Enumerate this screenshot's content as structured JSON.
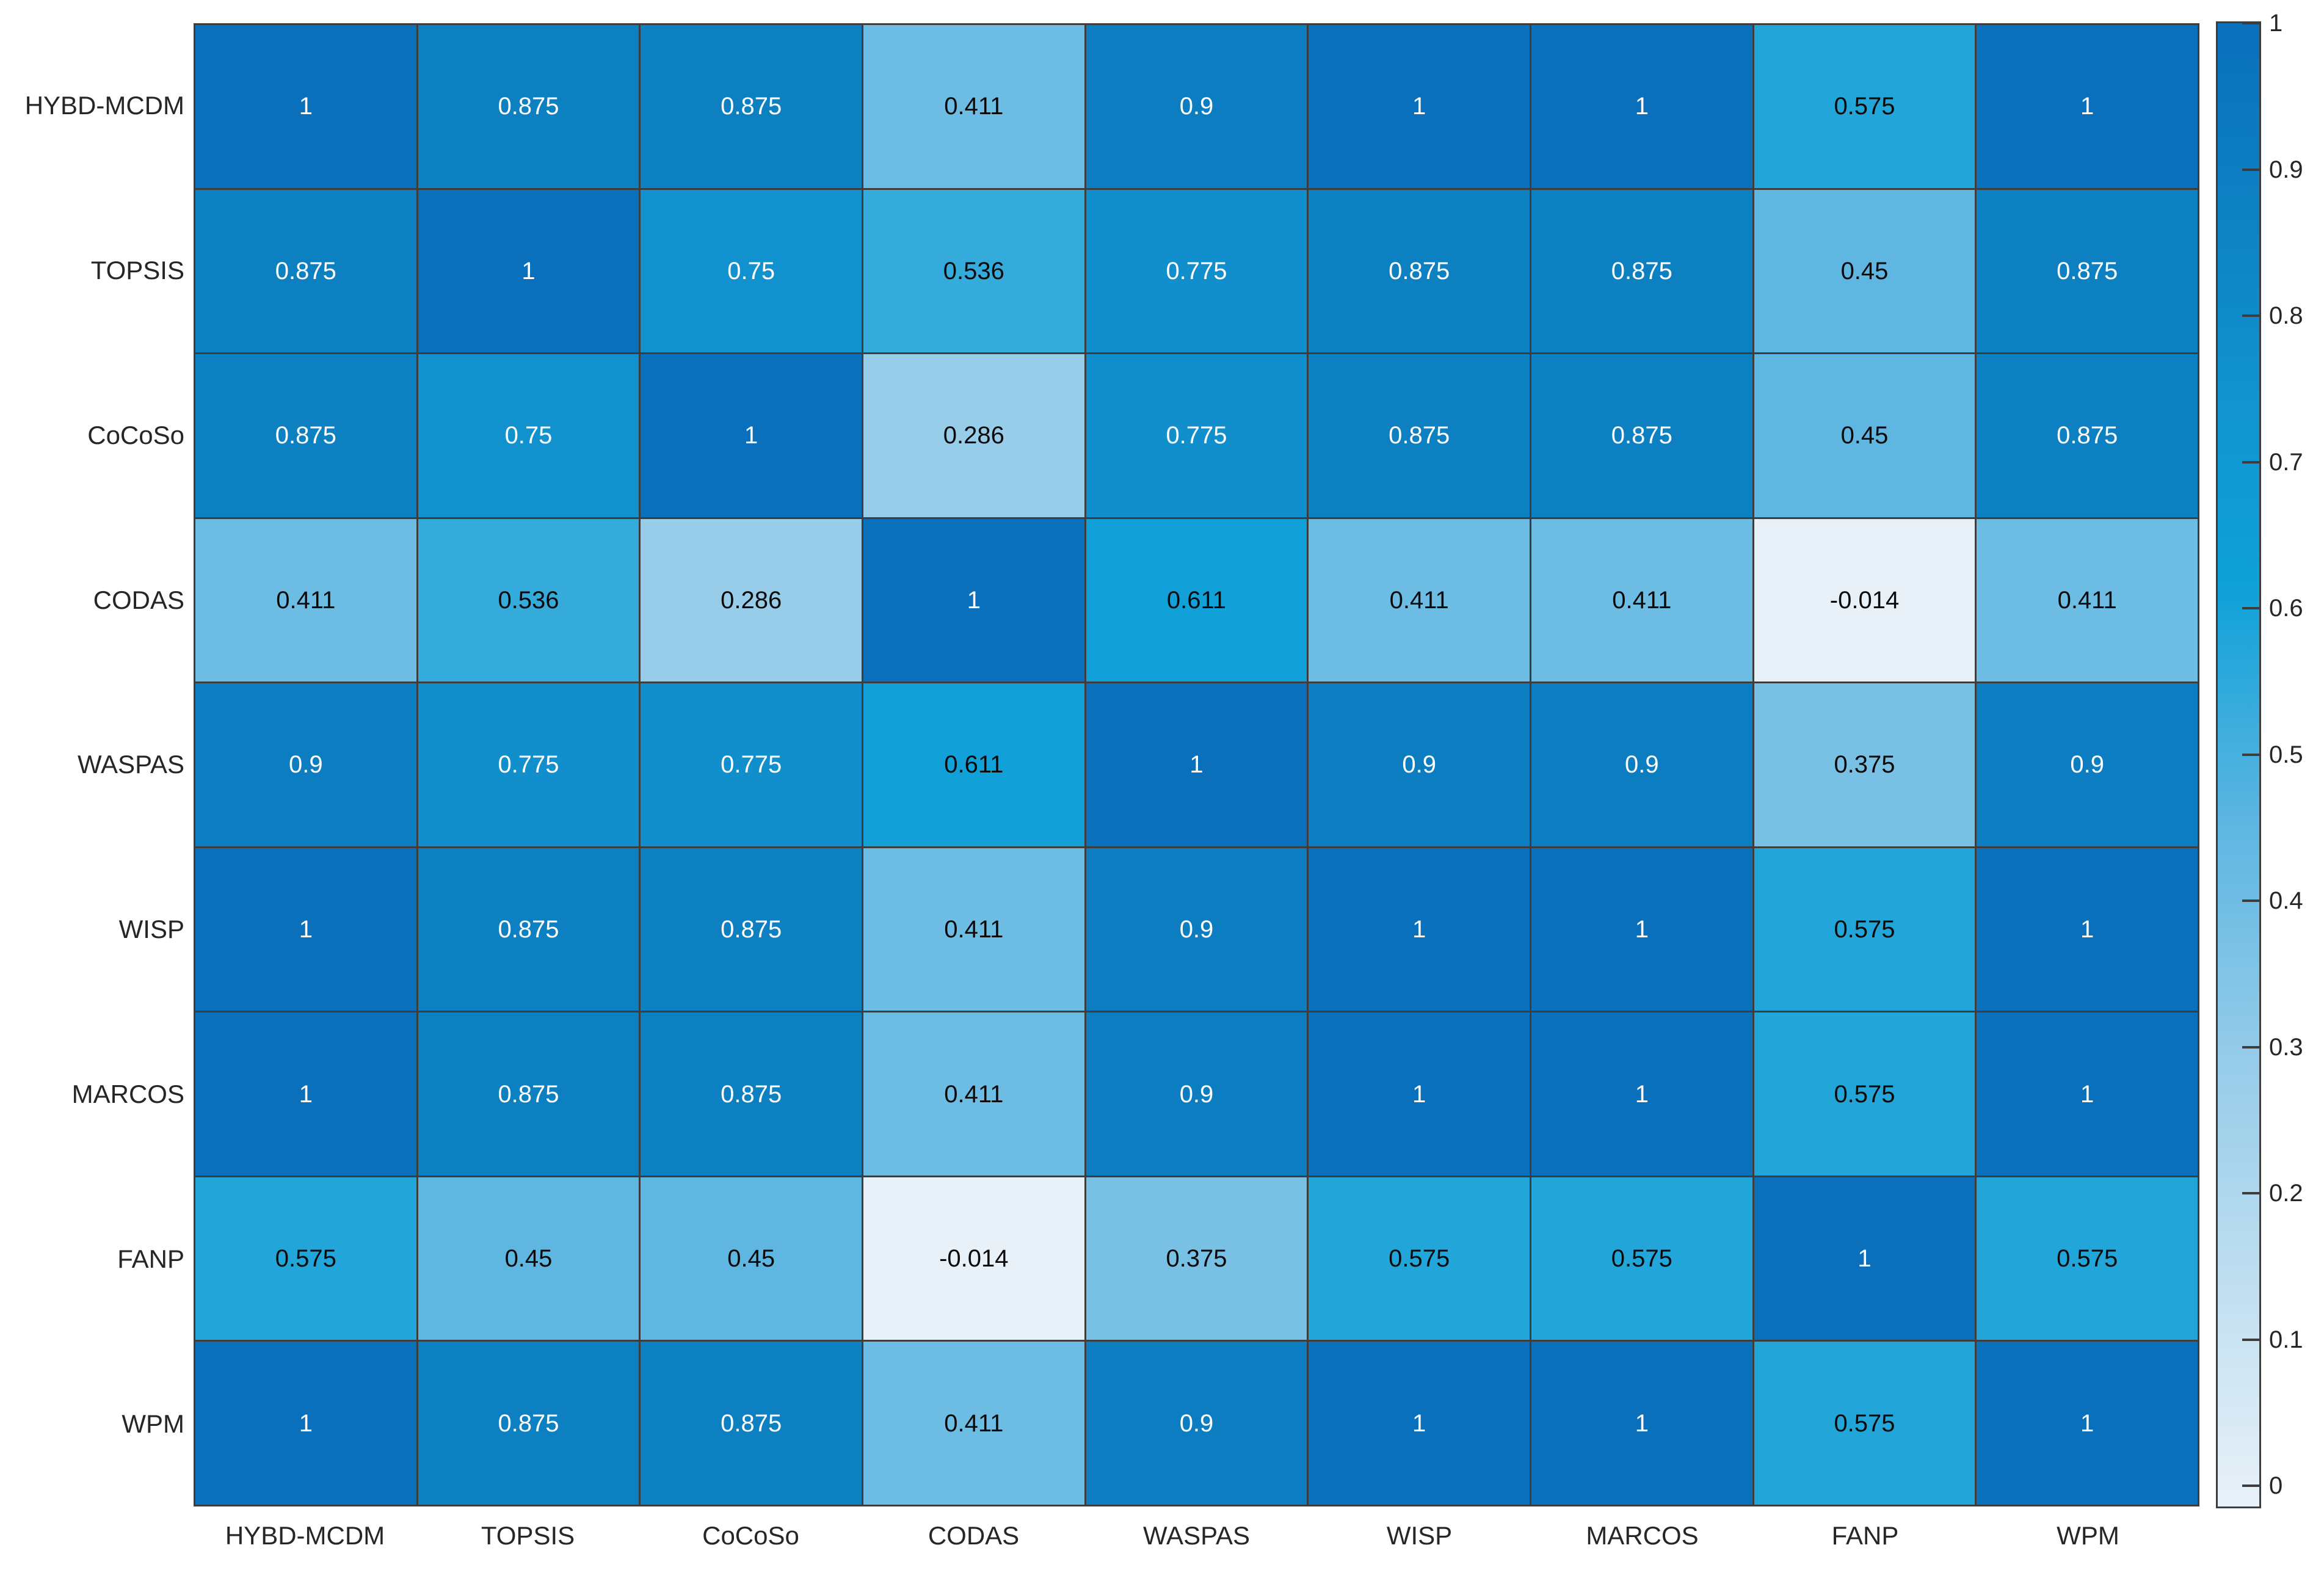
{
  "chart_data": {
    "type": "heatmap",
    "title": "",
    "categories": [
      "HYBD-MCDM",
      "TOPSIS",
      "CoCoSo",
      "CODAS",
      "WASPAS",
      "WISP",
      "MARCOS",
      "FANP",
      "WPM"
    ],
    "matrix": [
      [
        1,
        0.875,
        0.875,
        0.411,
        0.9,
        1,
        1,
        0.575,
        1
      ],
      [
        0.875,
        1,
        0.75,
        0.536,
        0.775,
        0.875,
        0.875,
        0.45,
        0.875
      ],
      [
        0.875,
        0.75,
        1,
        0.286,
        0.775,
        0.875,
        0.875,
        0.45,
        0.875
      ],
      [
        0.411,
        0.536,
        0.286,
        1,
        0.611,
        0.411,
        0.411,
        -0.014,
        0.411
      ],
      [
        0.9,
        0.775,
        0.775,
        0.611,
        1,
        0.9,
        0.9,
        0.375,
        0.9
      ],
      [
        1,
        0.875,
        0.875,
        0.411,
        0.9,
        1,
        1,
        0.575,
        1
      ],
      [
        1,
        0.875,
        0.875,
        0.411,
        0.9,
        1,
        1,
        0.575,
        1
      ],
      [
        0.575,
        0.45,
        0.45,
        -0.014,
        0.375,
        0.575,
        0.575,
        1,
        0.575
      ],
      [
        1,
        0.875,
        0.875,
        0.411,
        0.9,
        1,
        1,
        0.575,
        1
      ]
    ],
    "colorbar": {
      "position": "right",
      "vmin": -0.014,
      "vmax": 1,
      "tick_values": [
        0,
        0.1,
        0.2,
        0.3,
        0.4,
        0.5,
        0.6,
        0.7,
        0.8,
        0.9,
        1
      ],
      "tick_labels": [
        "0",
        "0.1",
        "0.2",
        "0.3",
        "0.4",
        "0.5",
        "0.6",
        "0.7",
        "0.8",
        "0.9",
        "1"
      ]
    },
    "colormap_stops": [
      {
        "t": 0,
        "color": "#e9f1f8"
      },
      {
        "t": 0.3,
        "color": "#96cce9"
      },
      {
        "t": 0.46,
        "color": "#5db6e1"
      },
      {
        "t": 0.62,
        "color": "#0fa1d8"
      },
      {
        "t": 0.75,
        "color": "#1193cf"
      },
      {
        "t": 0.88,
        "color": "#0d80c2"
      },
      {
        "t": 1,
        "color": "#0a70bc"
      }
    ],
    "text_color_threshold": 0.7,
    "grid_on": true,
    "colors": {
      "grid": "#3d3d3d",
      "axis_label": "#262626",
      "cell_text_dark": "#0a0a0a",
      "cell_text_light": "#ffffff",
      "background": "#ffffff"
    }
  }
}
